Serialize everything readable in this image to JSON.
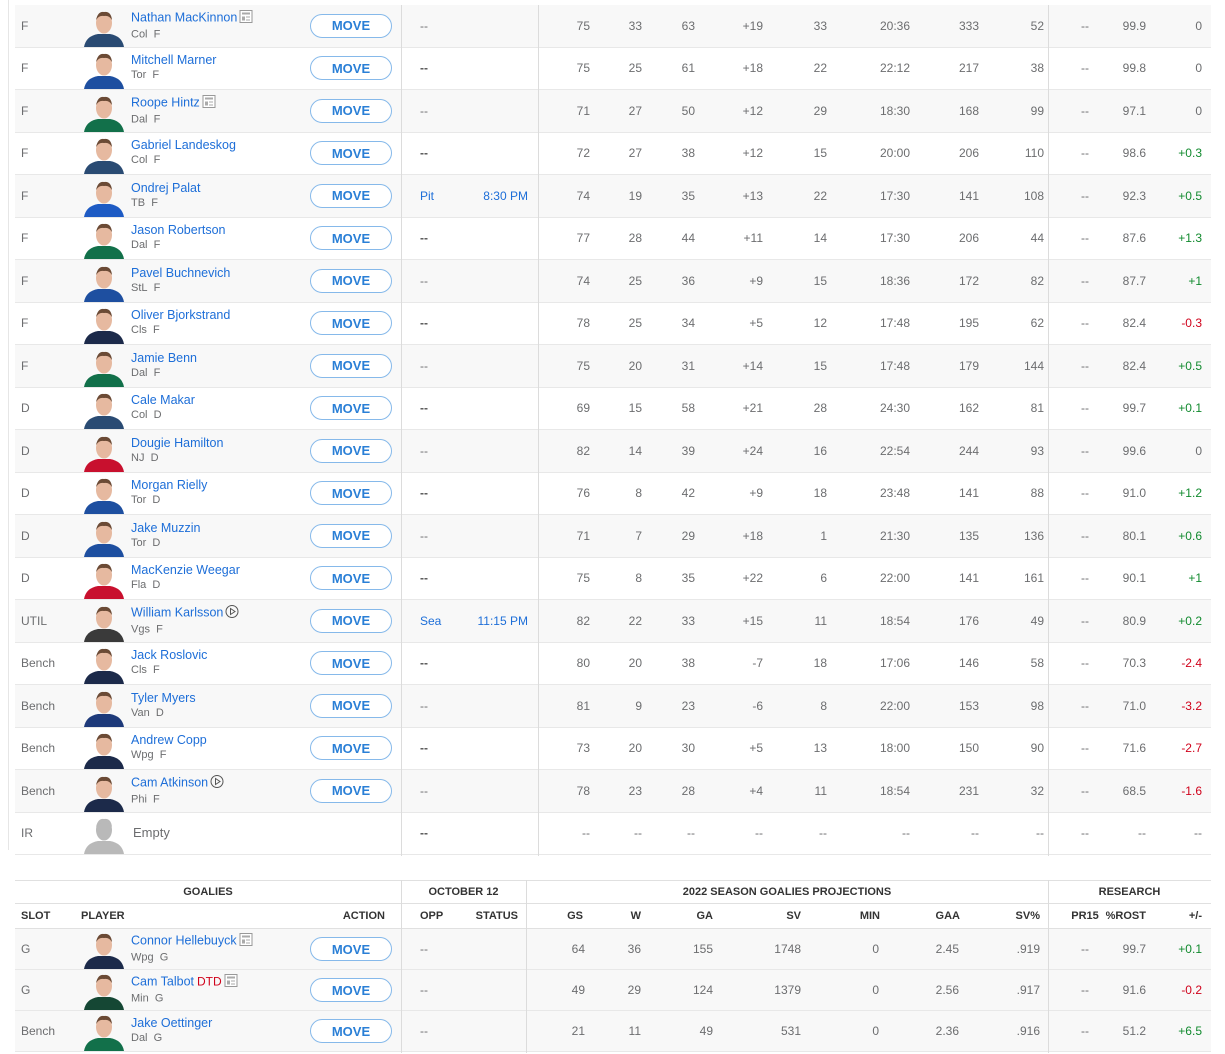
{
  "move_label": "MOVE",
  "colors": {
    "link": "#1d6ed8",
    "positive": "#118a2e",
    "negative": "#d0021b",
    "button_border": "#86b9ea"
  },
  "skaters": [
    {
      "slot": "F",
      "name": "Nathan MacKinnon",
      "team": "Col",
      "pos": "F",
      "icon": "news-icon",
      "opp": "--",
      "status": "",
      "stats": [
        "75",
        "33",
        "63",
        "+19",
        "33",
        "20:36",
        "333",
        "52"
      ],
      "pr15": "--",
      "rost": "99.9",
      "change": "0",
      "jersey": "#2a4b73"
    },
    {
      "slot": "F",
      "name": "Mitchell Marner",
      "team": "Tor",
      "pos": "F",
      "opp": "--",
      "status": "",
      "stats": [
        "75",
        "25",
        "61",
        "+18",
        "22",
        "22:12",
        "217",
        "38"
      ],
      "pr15": "--",
      "rost": "99.8",
      "change": "0",
      "jersey": "#1e4fa0"
    },
    {
      "slot": "F",
      "name": "Roope Hintz",
      "team": "Dal",
      "pos": "F",
      "icon": "news-icon",
      "opp": "--",
      "status": "",
      "stats": [
        "71",
        "27",
        "50",
        "+12",
        "29",
        "18:30",
        "168",
        "99"
      ],
      "pr15": "--",
      "rost": "97.1",
      "change": "0",
      "jersey": "#12704a"
    },
    {
      "slot": "F",
      "name": "Gabriel Landeskog",
      "team": "Col",
      "pos": "F",
      "opp": "--",
      "status": "",
      "stats": [
        "72",
        "27",
        "38",
        "+12",
        "15",
        "20:00",
        "206",
        "110"
      ],
      "pr15": "--",
      "rost": "98.6",
      "change": "+0.3",
      "jersey": "#2a4b73"
    },
    {
      "slot": "F",
      "name": "Ondrej Palat",
      "team": "TB",
      "pos": "F",
      "opp": "Pit",
      "status": "8:30 PM",
      "stats": [
        "74",
        "19",
        "35",
        "+13",
        "22",
        "17:30",
        "141",
        "108"
      ],
      "pr15": "--",
      "rost": "92.3",
      "change": "+0.5",
      "jersey": "#1e5bc4"
    },
    {
      "slot": "F",
      "name": "Jason Robertson",
      "team": "Dal",
      "pos": "F",
      "opp": "--",
      "status": "",
      "stats": [
        "77",
        "28",
        "44",
        "+11",
        "14",
        "17:30",
        "206",
        "44"
      ],
      "pr15": "--",
      "rost": "87.6",
      "change": "+1.3",
      "jersey": "#12704a"
    },
    {
      "slot": "F",
      "name": "Pavel Buchnevich",
      "team": "StL",
      "pos": "F",
      "opp": "--",
      "status": "",
      "stats": [
        "74",
        "25",
        "36",
        "+9",
        "15",
        "18:36",
        "172",
        "82"
      ],
      "pr15": "--",
      "rost": "87.7",
      "change": "+1",
      "jersey": "#1e4fa0"
    },
    {
      "slot": "F",
      "name": "Oliver Bjorkstrand",
      "team": "Cls",
      "pos": "F",
      "opp": "--",
      "status": "",
      "stats": [
        "78",
        "25",
        "34",
        "+5",
        "12",
        "17:48",
        "195",
        "62"
      ],
      "pr15": "--",
      "rost": "82.4",
      "change": "-0.3",
      "jersey": "#1c2a4a"
    },
    {
      "slot": "F",
      "name": "Jamie Benn",
      "team": "Dal",
      "pos": "F",
      "opp": "--",
      "status": "",
      "stats": [
        "75",
        "20",
        "31",
        "+14",
        "15",
        "17:48",
        "179",
        "144"
      ],
      "pr15": "--",
      "rost": "82.4",
      "change": "+0.5",
      "jersey": "#12704a"
    },
    {
      "slot": "D",
      "name": "Cale Makar",
      "team": "Col",
      "pos": "D",
      "opp": "--",
      "status": "",
      "stats": [
        "69",
        "15",
        "58",
        "+21",
        "28",
        "24:30",
        "162",
        "81"
      ],
      "pr15": "--",
      "rost": "99.7",
      "change": "+0.1",
      "jersey": "#2a4b73"
    },
    {
      "slot": "D",
      "name": "Dougie Hamilton",
      "team": "NJ",
      "pos": "D",
      "opp": "--",
      "status": "",
      "stats": [
        "82",
        "14",
        "39",
        "+24",
        "16",
        "22:54",
        "244",
        "93"
      ],
      "pr15": "--",
      "rost": "99.6",
      "change": "0",
      "jersey": "#c8102e"
    },
    {
      "slot": "D",
      "name": "Morgan Rielly",
      "team": "Tor",
      "pos": "D",
      "opp": "--",
      "status": "",
      "stats": [
        "76",
        "8",
        "42",
        "+9",
        "18",
        "23:48",
        "141",
        "88"
      ],
      "pr15": "--",
      "rost": "91.0",
      "change": "+1.2",
      "jersey": "#1e4fa0"
    },
    {
      "slot": "D",
      "name": "Jake Muzzin",
      "team": "Tor",
      "pos": "D",
      "opp": "--",
      "status": "",
      "stats": [
        "71",
        "7",
        "29",
        "+18",
        "1",
        "21:30",
        "135",
        "136"
      ],
      "pr15": "--",
      "rost": "80.1",
      "change": "+0.6",
      "jersey": "#1e4fa0"
    },
    {
      "slot": "D",
      "name": "MacKenzie Weegar",
      "team": "Fla",
      "pos": "D",
      "opp": "--",
      "status": "",
      "stats": [
        "75",
        "8",
        "35",
        "+22",
        "6",
        "22:00",
        "141",
        "161"
      ],
      "pr15": "--",
      "rost": "90.1",
      "change": "+1",
      "jersey": "#c8102e"
    },
    {
      "slot": "UTIL",
      "name": "William Karlsson",
      "team": "Vgs",
      "pos": "F",
      "icon": "video-play-icon",
      "opp": "Sea",
      "status": "11:15 PM",
      "stats": [
        "82",
        "22",
        "33",
        "+15",
        "11",
        "18:54",
        "176",
        "49"
      ],
      "pr15": "--",
      "rost": "80.9",
      "change": "+0.2",
      "jersey": "#3a3a3a"
    },
    {
      "slot": "Bench",
      "name": "Jack Roslovic",
      "team": "Cls",
      "pos": "F",
      "opp": "--",
      "status": "",
      "stats": [
        "80",
        "20",
        "38",
        "-7",
        "18",
        "17:06",
        "146",
        "58"
      ],
      "pr15": "--",
      "rost": "70.3",
      "change": "-2.4",
      "jersey": "#1c2a4a"
    },
    {
      "slot": "Bench",
      "name": "Tyler Myers",
      "team": "Van",
      "pos": "D",
      "opp": "--",
      "status": "",
      "stats": [
        "81",
        "9",
        "23",
        "-6",
        "8",
        "22:00",
        "153",
        "98"
      ],
      "pr15": "--",
      "rost": "71.0",
      "change": "-3.2",
      "jersey": "#1e3a7a"
    },
    {
      "slot": "Bench",
      "name": "Andrew Copp",
      "team": "Wpg",
      "pos": "F",
      "opp": "--",
      "status": "",
      "stats": [
        "73",
        "20",
        "30",
        "+5",
        "13",
        "18:00",
        "150",
        "90"
      ],
      "pr15": "--",
      "rost": "71.6",
      "change": "-2.7",
      "jersey": "#1c2a4a"
    },
    {
      "slot": "Bench",
      "name": "Cam Atkinson",
      "team": "Phi",
      "pos": "F",
      "icon": "video-play-icon",
      "opp": "--",
      "status": "",
      "stats": [
        "78",
        "23",
        "28",
        "+4",
        "11",
        "18:54",
        "231",
        "32"
      ],
      "pr15": "--",
      "rost": "68.5",
      "change": "-1.6",
      "jersey": "#1c2a4a"
    },
    {
      "slot": "IR",
      "name": "Empty",
      "empty": true,
      "opp": "--",
      "status": "",
      "stats": [
        "--",
        "--",
        "--",
        "--",
        "--",
        "--",
        "--",
        "--"
      ],
      "pr15": "--",
      "rost": "--",
      "change": "--"
    }
  ],
  "goalies": {
    "group_headers": {
      "main": "GOALIES",
      "date": "OCTOBER 12",
      "projections": "2022 SEASON GOALIES PROJECTIONS",
      "research": "RESEARCH"
    },
    "columns": {
      "slot": "SLOT",
      "player": "PLAYER",
      "action": "ACTION",
      "opp": "OPP",
      "status": "STATUS",
      "stats": [
        "GS",
        "W",
        "GA",
        "SV",
        "MIN",
        "GAA",
        "SV%"
      ],
      "pr15": "PR15",
      "rost": "%ROST",
      "change": "+/-"
    },
    "rows": [
      {
        "slot": "G",
        "name": "Connor Hellebuyck",
        "team": "Wpg",
        "pos": "G",
        "icon": "news-icon",
        "opp": "--",
        "stats": [
          "64",
          "36",
          "155",
          "1748",
          "0",
          "2.45",
          ".919"
        ],
        "pr15": "--",
        "rost": "99.7",
        "change": "+0.1",
        "jersey": "#1c2a4a"
      },
      {
        "slot": "G",
        "name": "Cam Talbot",
        "team": "Min",
        "pos": "G",
        "injury": "DTD",
        "icon": "news-icon",
        "opp": "--",
        "stats": [
          "49",
          "29",
          "124",
          "1379",
          "0",
          "2.56",
          ".917"
        ],
        "pr15": "--",
        "rost": "91.6",
        "change": "-0.2",
        "jersey": "#154734"
      },
      {
        "slot": "Bench",
        "name": "Jake Oettinger",
        "team": "Dal",
        "pos": "G",
        "opp": "--",
        "stats": [
          "21",
          "11",
          "49",
          "531",
          "0",
          "2.36",
          ".916"
        ],
        "pr15": "--",
        "rost": "51.2",
        "change": "+6.5",
        "jersey": "#12704a"
      }
    ]
  }
}
